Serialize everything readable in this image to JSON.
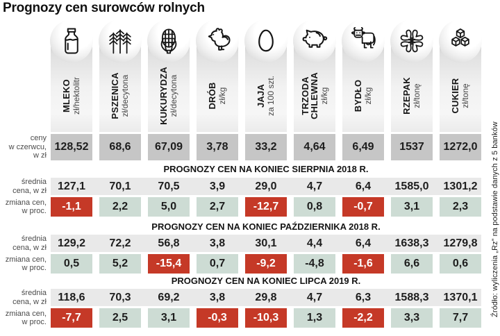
{
  "title": "Prognozy cen surowców rolnych",
  "source": "Źródło: wyliczenia „Rz” na podstawie danych z 5 banków",
  "row_labels": {
    "june": "ceny\nw czerwcu,\nw zł",
    "avg": "średnia\ncena, w zł",
    "change": "zmiana cen,\nw proc."
  },
  "columns": [
    {
      "name": "MLEKO",
      "unit": "zł/hektolitr",
      "icon": "milk-bottle-icon"
    },
    {
      "name": "PSZENICA",
      "unit": "zł/decytona",
      "icon": "wheat-icon"
    },
    {
      "name": "KUKURYDZA",
      "unit": "zł/decytona",
      "icon": "corn-icon"
    },
    {
      "name": "DRÓB",
      "unit": "zł/kg",
      "icon": "chicken-icon"
    },
    {
      "name": "JAJA",
      "unit": "za 100 szt.",
      "icon": "egg-icon"
    },
    {
      "name": "TRZODA\nCHLEWNA",
      "unit": "zł/kg",
      "icon": "pig-icon"
    },
    {
      "name": "BYDŁO",
      "unit": "zł/kg",
      "icon": "cow-icon"
    },
    {
      "name": "RZEPAK",
      "unit": "zł/tonę",
      "icon": "rapeseed-flower-icon"
    },
    {
      "name": "CUKIER",
      "unit": "zł/tonę",
      "icon": "sugar-cubes-icon"
    }
  ],
  "june_prices": [
    "128,52",
    "68,6",
    "67,09",
    "3,78",
    "33,2",
    "4,64",
    "6,49",
    "1537",
    "1272,0"
  ],
  "sections": [
    {
      "header": "PROGNOZY CEN NA KONIEC SIERPNIA 2018 R.",
      "avg": [
        "127,1",
        "70,1",
        "70,5",
        "3,9",
        "29,0",
        "4,7",
        "6,4",
        "1585,0",
        "1301,2"
      ],
      "change": [
        {
          "value": "-1,1",
          "tone": "red"
        },
        {
          "value": "2,2",
          "tone": "green"
        },
        {
          "value": "5,0",
          "tone": "green"
        },
        {
          "value": "2,7",
          "tone": "green"
        },
        {
          "value": "-12,7",
          "tone": "red"
        },
        {
          "value": "0,8",
          "tone": "green"
        },
        {
          "value": "-0,7",
          "tone": "red"
        },
        {
          "value": "3,1",
          "tone": "green"
        },
        {
          "value": "2,3",
          "tone": "green"
        }
      ]
    },
    {
      "header": "PROGNOZY CEN NA KONIEC PAŹDZIERNIKA 2018 R.",
      "avg": [
        "129,2",
        "72,2",
        "56,8",
        "3,8",
        "30,1",
        "4,4",
        "6,4",
        "1638,3",
        "1279,8"
      ],
      "change": [
        {
          "value": "0,5",
          "tone": "green"
        },
        {
          "value": "5,2",
          "tone": "green"
        },
        {
          "value": "-15,4",
          "tone": "red"
        },
        {
          "value": "0,7",
          "tone": "green"
        },
        {
          "value": "-9,2",
          "tone": "red"
        },
        {
          "value": "-4,8",
          "tone": "green"
        },
        {
          "value": "-1,6",
          "tone": "red"
        },
        {
          "value": "6,6",
          "tone": "green"
        },
        {
          "value": "0,6",
          "tone": "green"
        }
      ]
    },
    {
      "header": "PROGNOZY CEN NA KONIEC LIPCA 2019 R.",
      "avg": [
        "118,6",
        "70,3",
        "69,2",
        "3,8",
        "29,8",
        "4,7",
        "6,3",
        "1588,3",
        "1370,1"
      ],
      "change": [
        {
          "value": "-7,7",
          "tone": "red"
        },
        {
          "value": "2,5",
          "tone": "green"
        },
        {
          "value": "3,1",
          "tone": "green"
        },
        {
          "value": "-0,3",
          "tone": "red"
        },
        {
          "value": "-10,3",
          "tone": "red"
        },
        {
          "value": "1,3",
          "tone": "green"
        },
        {
          "value": "-2,2",
          "tone": "red"
        },
        {
          "value": "3,3",
          "tone": "green"
        },
        {
          "value": "7,7",
          "tone": "green"
        }
      ]
    }
  ],
  "colors": {
    "red": "#c53927",
    "green": "#cddcd4",
    "gray_box": "#c6c6c6",
    "avg_band": "#e9e9e9"
  },
  "chart_data": {
    "type": "table",
    "title": "Prognozy cen surowców rolnych",
    "categories": [
      "MLEKO zł/hektolitr",
      "PSZENICA zł/decytona",
      "KUKURYDZA zł/decytona",
      "DRÓB zł/kg",
      "JAJA za 100 szt.",
      "TRZODA CHLEWNA zł/kg",
      "BYDŁO zł/kg",
      "RZEPAK zł/tonę",
      "CUKIER zł/tonę"
    ],
    "rows": [
      {
        "label": "ceny w czerwcu, w zł",
        "values": [
          128.52,
          68.6,
          67.09,
          3.78,
          33.2,
          4.64,
          6.49,
          1537,
          1272.0
        ]
      },
      {
        "label": "PROGNOZY CEN NA KONIEC SIERPNIA 2018 R. — średnia cena, w zł",
        "values": [
          127.1,
          70.1,
          70.5,
          3.9,
          29.0,
          4.7,
          6.4,
          1585.0,
          1301.2
        ]
      },
      {
        "label": "PROGNOZY CEN NA KONIEC SIERPNIA 2018 R. — zmiana cen, w proc.",
        "values": [
          -1.1,
          2.2,
          5.0,
          2.7,
          -12.7,
          0.8,
          -0.7,
          3.1,
          2.3
        ]
      },
      {
        "label": "PROGNOZY CEN NA KONIEC PAŹDZIERNIKA 2018 R. — średnia cena, w zł",
        "values": [
          129.2,
          72.2,
          56.8,
          3.8,
          30.1,
          4.4,
          6.4,
          1638.3,
          1279.8
        ]
      },
      {
        "label": "PROGNOZY CEN NA KONIEC PAŹDZIERNIKA 2018 R. — zmiana cen, w proc.",
        "values": [
          0.5,
          5.2,
          -15.4,
          0.7,
          -9.2,
          -4.8,
          -1.6,
          6.6,
          0.6
        ]
      },
      {
        "label": "PROGNOZY CEN NA KONIEC LIPCA 2019 R. — średnia cena, w zł",
        "values": [
          118.6,
          70.3,
          69.2,
          3.8,
          29.8,
          4.7,
          6.3,
          1588.3,
          1370.1
        ]
      },
      {
        "label": "PROGNOZY CEN NA KONIEC LIPCA 2019 R. — zmiana cen, w proc.",
        "values": [
          -7.7,
          2.5,
          3.1,
          -0.3,
          -10.3,
          1.3,
          -2.2,
          3.3,
          7.7
        ]
      }
    ]
  }
}
